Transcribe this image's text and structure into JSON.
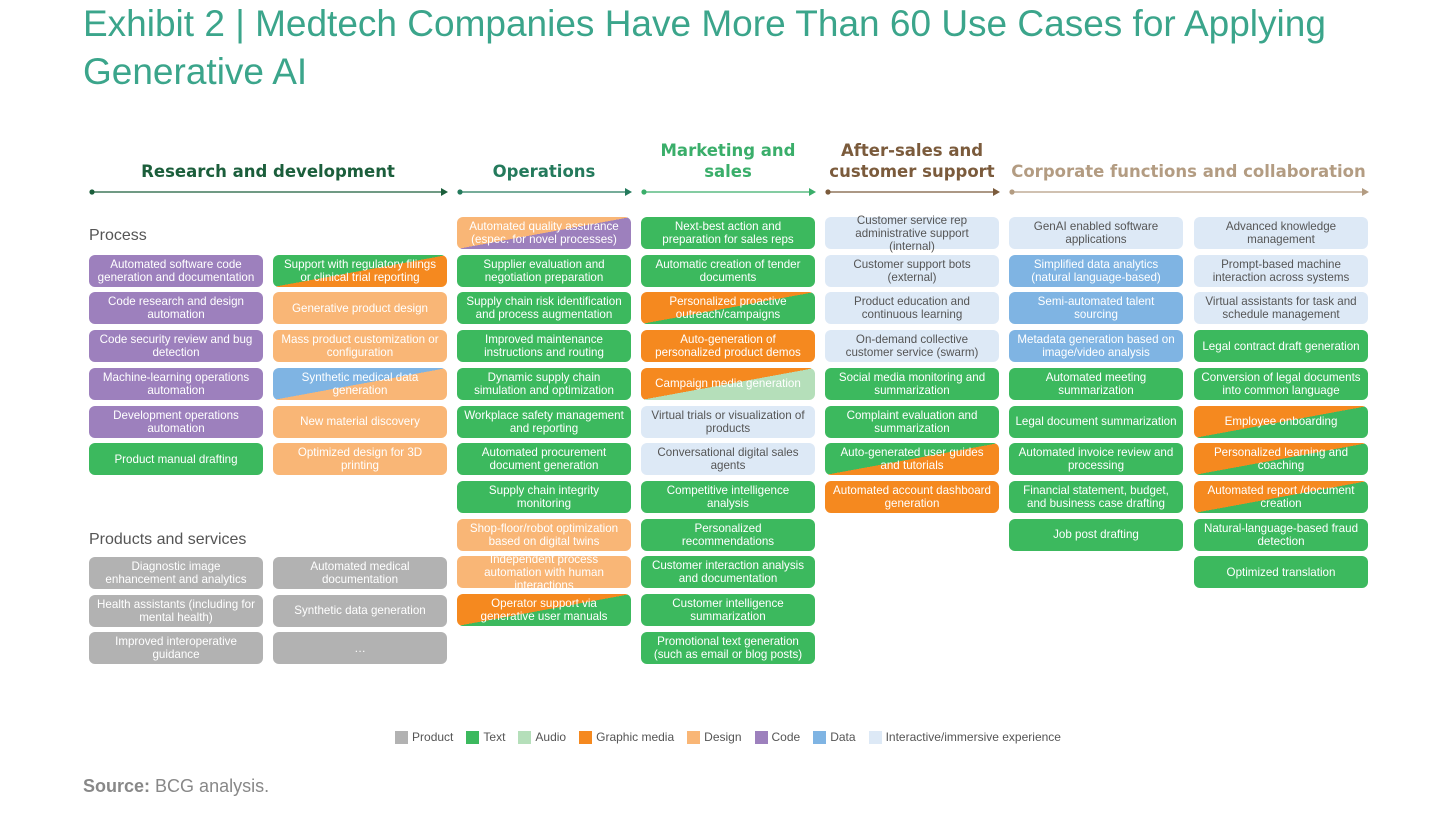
{
  "title": "Exhibit 2 | Medtech Companies Have More Than 60 Use Cases for Applying Generative AI",
  "headers": [
    {
      "label": "Research and development",
      "color": "#1b5e3b"
    },
    {
      "label": "Operations",
      "color": "#247a5c"
    },
    {
      "label": "Marketing and sales",
      "color": "#3aae6a"
    },
    {
      "label": "After-sales and customer support",
      "color": "#7b5b3c"
    },
    {
      "label": "Corporate functions and collaboration",
      "color": "#b39c82"
    }
  ],
  "row_labels": {
    "process": "Process",
    "products": "Products and services"
  },
  "legend": [
    {
      "label": "Product",
      "color": "#b2b2b2"
    },
    {
      "label": "Text",
      "color": "#3cb95e"
    },
    {
      "label": "Audio",
      "color": "#b5dfba"
    },
    {
      "label": "Graphic media",
      "color": "#f5891f"
    },
    {
      "label": "Design",
      "color": "#f9b676"
    },
    {
      "label": "Code",
      "color": "#9d80bd"
    },
    {
      "label": "Data",
      "color": "#7fb4e3"
    },
    {
      "label": "Interactive/immersive experience",
      "color": "#dde9f6"
    }
  ],
  "columns": [
    {
      "process": [
        {
          "text": "Automated software code generation and documentation",
          "kinds": [
            5
          ]
        },
        {
          "text": "Code research and design automation",
          "kinds": [
            5
          ]
        },
        {
          "text": "Code security review and bug detection",
          "kinds": [
            5
          ]
        },
        {
          "text": "Machine-learning operations automation",
          "kinds": [
            5
          ]
        },
        {
          "text": "Development operations automation",
          "kinds": [
            5
          ]
        },
        {
          "text": "Product manual drafting",
          "kinds": [
            1
          ]
        }
      ],
      "products": [
        {
          "text": "Diagnostic image enhancement and analytics",
          "kinds": [
            0
          ]
        },
        {
          "text": "Health assistants (including for mental health)",
          "kinds": [
            0
          ]
        },
        {
          "text": "Improved interoperative guidance",
          "kinds": [
            0
          ]
        }
      ]
    },
    {
      "process": [
        {
          "text": "Support with regulatory filings or clinical trial reporting",
          "kinds": [
            1,
            3
          ]
        },
        {
          "text": "Generative product design",
          "kinds": [
            4
          ]
        },
        {
          "text": "Mass product customization or configuration",
          "kinds": [
            4
          ]
        },
        {
          "text": "Synthetic medical data generation",
          "kinds": [
            6,
            4
          ]
        },
        {
          "text": "New material discovery",
          "kinds": [
            4
          ]
        },
        {
          "text": "Optimized design for 3D printing",
          "kinds": [
            4
          ]
        }
      ],
      "products": [
        {
          "text": "Automated medical documentation",
          "kinds": [
            0
          ]
        },
        {
          "text": "Synthetic data generation",
          "kinds": [
            0
          ]
        },
        {
          "text": "…",
          "kinds": [
            0
          ]
        }
      ]
    },
    {
      "process": [
        {
          "text": "Automated quality assurance (espec. for novel processes)",
          "kinds": [
            4,
            5
          ]
        },
        {
          "text": "Supplier evaluation and negotiation preparation",
          "kinds": [
            1
          ]
        },
        {
          "text": "Supply chain risk identification and process augmentation",
          "kinds": [
            1
          ]
        },
        {
          "text": "Improved maintenance instructions and routing",
          "kinds": [
            1
          ]
        },
        {
          "text": "Dynamic supply chain simulation and optimization",
          "kinds": [
            1
          ]
        },
        {
          "text": "Workplace safety management and reporting",
          "kinds": [
            1
          ]
        },
        {
          "text": "Automated procurement document generation",
          "kinds": [
            1
          ]
        },
        {
          "text": "Supply chain integrity monitoring",
          "kinds": [
            1
          ]
        },
        {
          "text": "Shop-floor/robot optimization based on digital twins",
          "kinds": [
            4
          ]
        },
        {
          "text": "Independent process automation with human interactions",
          "kinds": [
            4
          ]
        },
        {
          "text": "Operator support via generative user manuals",
          "kinds": [
            3,
            1
          ]
        }
      ]
    },
    {
      "process": [
        {
          "text": "Next-best action and preparation for sales reps",
          "kinds": [
            1
          ]
        },
        {
          "text": "Automatic creation of tender documents",
          "kinds": [
            1
          ]
        },
        {
          "text": "Personalized proactive outreach/campaigns",
          "kinds": [
            3,
            1
          ]
        },
        {
          "text": "Auto-generation of personalized product demos",
          "kinds": [
            3
          ]
        },
        {
          "text": "Campaign media generation",
          "kinds": [
            3,
            2
          ]
        },
        {
          "text": "Virtual trials or visualization of products",
          "kinds": [
            7
          ]
        },
        {
          "text": "Conversational digital sales agents",
          "kinds": [
            7
          ]
        },
        {
          "text": "Competitive intelligence analysis",
          "kinds": [
            1
          ]
        },
        {
          "text": "Personalized recommendations",
          "kinds": [
            1
          ]
        },
        {
          "text": "Customer interaction analysis and documentation",
          "kinds": [
            1
          ]
        },
        {
          "text": "Customer intelligence summarization",
          "kinds": [
            1
          ]
        },
        {
          "text": "Promotional text generation (such as email or blog posts)",
          "kinds": [
            1
          ]
        }
      ]
    },
    {
      "process": [
        {
          "text": "Customer service rep administrative support (internal)",
          "kinds": [
            7
          ]
        },
        {
          "text": "Customer support bots (external)",
          "kinds": [
            7
          ]
        },
        {
          "text": "Product education and continuous learning",
          "kinds": [
            7
          ]
        },
        {
          "text": "On-demand collective customer service (swarm)",
          "kinds": [
            7
          ]
        },
        {
          "text": "Social media monitoring and summarization",
          "kinds": [
            1
          ]
        },
        {
          "text": "Complaint evaluation and summarization",
          "kinds": [
            1
          ]
        },
        {
          "text": "Auto-generated user guides and tutorials",
          "kinds": [
            1,
            3
          ]
        },
        {
          "text": "Automated account dashboard generation",
          "kinds": [
            3
          ]
        }
      ]
    },
    {
      "process": [
        {
          "text": "GenAI enabled software applications",
          "kinds": [
            7
          ]
        },
        {
          "text": "Simplified data analytics (natural language-based)",
          "kinds": [
            6
          ]
        },
        {
          "text": "Semi-automated talent sourcing",
          "kinds": [
            6
          ]
        },
        {
          "text": "Metadata generation based on image/video analysis",
          "kinds": [
            6
          ]
        },
        {
          "text": "Automated meeting summarization",
          "kinds": [
            1
          ]
        },
        {
          "text": "Legal document summarization",
          "kinds": [
            1
          ]
        },
        {
          "text": "Automated invoice review and processing",
          "kinds": [
            1
          ]
        },
        {
          "text": "Financial statement, budget, and business case drafting",
          "kinds": [
            1
          ]
        },
        {
          "text": "Job post drafting",
          "kinds": [
            1
          ]
        }
      ]
    },
    {
      "process": [
        {
          "text": "Advanced knowledge management",
          "kinds": [
            7
          ]
        },
        {
          "text": "Prompt-based machine interaction across systems",
          "kinds": [
            7
          ]
        },
        {
          "text": "Virtual assistants for task and schedule management",
          "kinds": [
            7
          ]
        },
        {
          "text": "Legal contract draft generation",
          "kinds": [
            1
          ]
        },
        {
          "text": "Conversion of legal documents into common language",
          "kinds": [
            1
          ]
        },
        {
          "text": "Employee onboarding",
          "kinds": [
            3,
            1
          ]
        },
        {
          "text": "Personalized learning and coaching",
          "kinds": [
            3,
            1
          ]
        },
        {
          "text": "Automated report /document creation",
          "kinds": [
            3,
            1
          ]
        },
        {
          "text": "Natural-language-based fraud detection",
          "kinds": [
            1
          ]
        },
        {
          "text": "Optimized translation",
          "kinds": [
            1
          ]
        }
      ]
    }
  ],
  "source": {
    "label": "Source:",
    "text": "BCG analysis."
  }
}
